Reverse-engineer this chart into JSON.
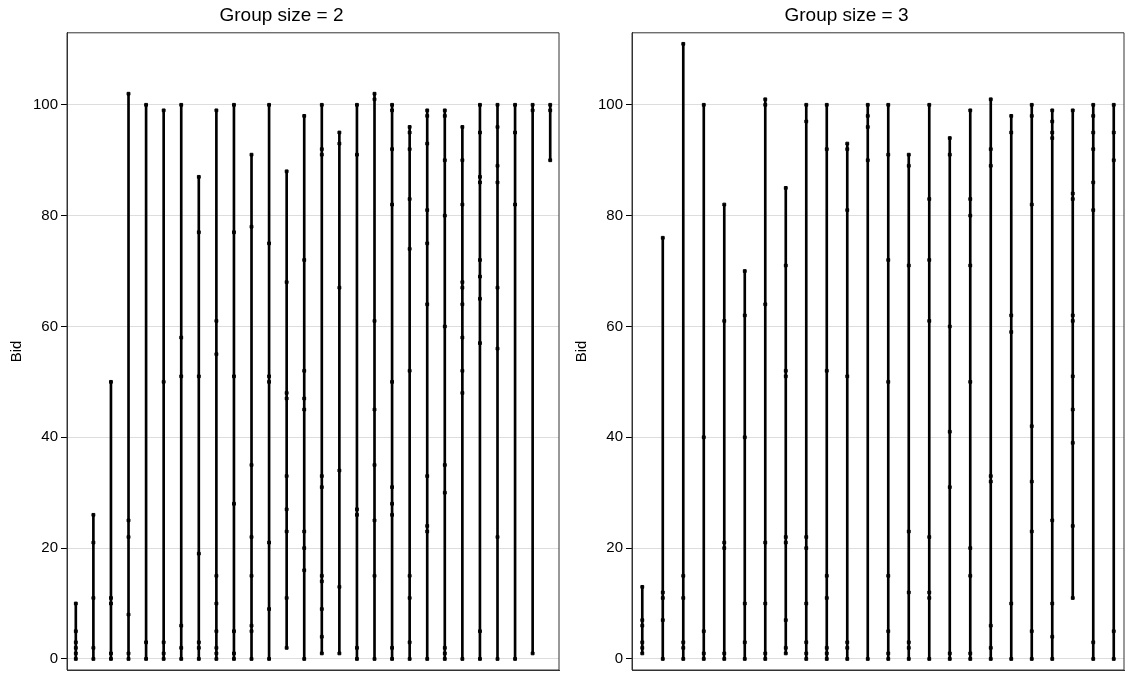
{
  "chart_data": [
    {
      "type": "bar",
      "title": "Group size = 2",
      "ylabel": "Bid",
      "ylim": [
        -2,
        113
      ],
      "yticks": [
        0,
        20,
        40,
        60,
        80,
        100
      ],
      "grid": "y",
      "tick_labels": "y",
      "marker": "square",
      "categories": [
        null,
        null,
        null,
        null,
        null,
        null,
        null,
        null,
        null,
        null,
        null,
        null,
        null,
        null,
        null,
        null,
        null,
        null,
        null,
        null,
        null,
        null,
        null,
        null,
        null,
        null,
        null,
        null
      ],
      "series": [
        {
          "color": "#000000",
          "base": [
            0,
            0,
            0,
            0,
            0,
            0,
            0,
            0,
            0,
            0,
            0,
            0,
            2,
            0,
            1,
            1,
            0,
            0,
            0,
            0,
            0,
            0,
            0,
            0,
            0,
            0,
            1,
            90
          ],
          "values": [
            10,
            26,
            50,
            102,
            100,
            99,
            100,
            87,
            99,
            100,
            91,
            100,
            86,
            98,
            99,
            94,
            100,
            102,
            100,
            96,
            99,
            99,
            96,
            100,
            100,
            100,
            99,
            10
          ]
        },
        {
          "type": "scatter",
          "color": "#000000",
          "values": [
            0,
            0,
            0,
            0,
            0,
            0,
            0,
            0,
            0,
            0,
            0,
            0,
            2,
            0,
            1,
            1,
            0,
            0,
            0,
            0,
            0,
            0,
            0,
            0,
            0,
            0,
            1,
            90
          ]
        },
        {
          "type": "scatter",
          "color": "#000000",
          "values": [
            1,
            2,
            1,
            1,
            3,
            1,
            2,
            2,
            1,
            1,
            5,
            9,
            11,
            16,
            4,
            13,
            2,
            15,
            2,
            3,
            23,
            1,
            48,
            5,
            22,
            82,
            99,
            99
          ]
        },
        {
          "type": "scatter",
          "color": "#000000",
          "values": [
            2,
            11,
            10,
            8,
            100,
            3,
            6,
            3,
            2,
            5,
            6,
            21,
            23,
            20,
            9,
            34,
            26,
            25,
            26,
            11,
            24,
            2,
            52,
            57,
            56,
            95,
            100,
            100
          ]
        },
        {
          "type": "scatter",
          "color": "#000000",
          "values": [
            3,
            21,
            11,
            22,
            null,
            50,
            51,
            19,
            5,
            28,
            15,
            50,
            27,
            23,
            14,
            67,
            27,
            35,
            28,
            15,
            33,
            30,
            58,
            65,
            67,
            100,
            null,
            null
          ]
        },
        {
          "type": "scatter",
          "color": "#000000",
          "values": [
            5,
            26,
            50,
            25,
            null,
            99,
            58,
            51,
            10,
            51,
            22,
            51,
            33,
            45,
            15,
            93,
            91,
            45,
            31,
            52,
            64,
            35,
            64,
            69,
            86,
            null,
            null,
            null
          ]
        },
        {
          "type": "scatter",
          "color": "#000000",
          "values": [
            10,
            null,
            null,
            102,
            null,
            null,
            100,
            77,
            15,
            77,
            35,
            75,
            47,
            47,
            31,
            95,
            100,
            61,
            50,
            74,
            75,
            60,
            67,
            72,
            89,
            null,
            null,
            null
          ]
        },
        {
          "type": "scatter",
          "color": "#000000",
          "values": [
            null,
            null,
            null,
            null,
            null,
            null,
            null,
            87,
            55,
            100,
            78,
            100,
            48,
            52,
            33,
            null,
            null,
            101,
            82,
            83,
            81,
            80,
            68,
            86,
            96,
            null,
            null,
            null
          ]
        },
        {
          "type": "scatter",
          "color": "#000000",
          "values": [
            null,
            null,
            null,
            null,
            null,
            null,
            null,
            null,
            61,
            null,
            91,
            null,
            68,
            72,
            91,
            null,
            null,
            102,
            92,
            92,
            93,
            90,
            82,
            87,
            100,
            null,
            null,
            null
          ]
        },
        {
          "type": "scatter",
          "color": "#000000",
          "values": [
            null,
            null,
            null,
            null,
            null,
            null,
            null,
            null,
            99,
            null,
            null,
            null,
            88,
            98,
            92,
            null,
            null,
            null,
            99,
            95,
            98,
            98,
            90,
            95,
            null,
            null,
            null,
            null
          ]
        },
        {
          "type": "scatter",
          "color": "#000000",
          "values": [
            null,
            null,
            null,
            null,
            null,
            null,
            null,
            null,
            null,
            null,
            null,
            null,
            null,
            null,
            100,
            null,
            null,
            null,
            100,
            96,
            99,
            99,
            96,
            100,
            null,
            null,
            null,
            null
          ]
        }
      ]
    },
    {
      "type": "bar",
      "title": "Group size = 3",
      "ylabel": "Bid",
      "ylim": [
        -2,
        113
      ],
      "yticks": [
        0,
        20,
        40,
        60,
        80,
        100
      ],
      "grid": "y",
      "tick_labels": "y",
      "marker": "square",
      "categories": [
        null,
        null,
        null,
        null,
        null,
        null,
        null,
        null,
        null,
        null,
        null,
        null,
        null,
        null,
        null,
        null,
        null,
        null,
        null,
        null,
        null,
        null,
        null,
        null
      ],
      "series": [
        {
          "color": "#000000",
          "base": [
            1,
            0,
            0,
            0,
            0,
            0,
            0,
            1,
            0,
            0,
            0,
            0,
            0,
            0,
            0,
            0,
            0,
            0,
            0,
            0,
            0,
            11,
            0,
            0
          ],
          "values": [
            12,
            76,
            111,
            100,
            82,
            70,
            101,
            84,
            100,
            100,
            93,
            100,
            100,
            91,
            100,
            94,
            99,
            101,
            98,
            100,
            99,
            88,
            100,
            100
          ]
        },
        {
          "type": "scatter",
          "color": "#000000",
          "values": [
            1,
            0,
            0,
            0,
            0,
            0,
            0,
            1,
            0,
            0,
            0,
            0,
            0,
            0,
            0,
            0,
            0,
            0,
            0,
            0,
            0,
            11,
            0,
            0
          ]
        },
        {
          "type": "scatter",
          "color": "#000000",
          "values": [
            2,
            7,
            2,
            1,
            1,
            3,
            1,
            2,
            1,
            1,
            2,
            90,
            1,
            2,
            11,
            1,
            1,
            2,
            10,
            5,
            4,
            24,
            3,
            5
          ]
        },
        {
          "type": "scatter",
          "color": "#000000",
          "values": [
            3,
            11,
            3,
            5,
            20,
            10,
            10,
            7,
            3,
            2,
            3,
            96,
            5,
            3,
            12,
            31,
            15,
            6,
            59,
            23,
            10,
            39,
            81,
            90
          ]
        },
        {
          "type": "scatter",
          "color": "#000000",
          "values": [
            6,
            12,
            11,
            40,
            21,
            40,
            21,
            21,
            10,
            11,
            51,
            98,
            15,
            12,
            22,
            41,
            20,
            32,
            62,
            32,
            25,
            45,
            86,
            95
          ]
        },
        {
          "type": "scatter",
          "color": "#000000",
          "values": [
            7,
            76,
            15,
            100,
            61,
            62,
            64,
            22,
            20,
            15,
            81,
            100,
            50,
            23,
            61,
            60,
            50,
            33,
            95,
            42,
            94,
            51,
            92,
            100
          ]
        },
        {
          "type": "scatter",
          "color": "#000000",
          "values": [
            13,
            null,
            111,
            null,
            82,
            70,
            100,
            51,
            22,
            52,
            92,
            null,
            72,
            71,
            72,
            91,
            71,
            89,
            98,
            82,
            95,
            61,
            95,
            null
          ]
        },
        {
          "type": "scatter",
          "color": "#000000",
          "values": [
            null,
            null,
            null,
            null,
            null,
            null,
            101,
            52,
            97,
            92,
            93,
            null,
            91,
            89,
            83,
            94,
            80,
            92,
            null,
            98,
            97,
            62,
            98,
            null
          ]
        },
        {
          "type": "scatter",
          "color": "#000000",
          "values": [
            null,
            null,
            null,
            null,
            null,
            null,
            null,
            71,
            100,
            100,
            null,
            null,
            100,
            91,
            100,
            null,
            83,
            101,
            null,
            100,
            99,
            83,
            100,
            null
          ]
        },
        {
          "type": "scatter",
          "color": "#000000",
          "values": [
            null,
            null,
            null,
            null,
            null,
            null,
            null,
            85,
            null,
            null,
            null,
            null,
            null,
            null,
            null,
            null,
            99,
            null,
            null,
            null,
            null,
            84,
            null,
            null
          ]
        },
        {
          "type": "scatter",
          "color": "#000000",
          "values": [
            null,
            null,
            null,
            null,
            null,
            null,
            null,
            null,
            null,
            null,
            null,
            null,
            null,
            null,
            null,
            null,
            null,
            null,
            null,
            null,
            null,
            99,
            null,
            null
          ]
        }
      ]
    }
  ]
}
